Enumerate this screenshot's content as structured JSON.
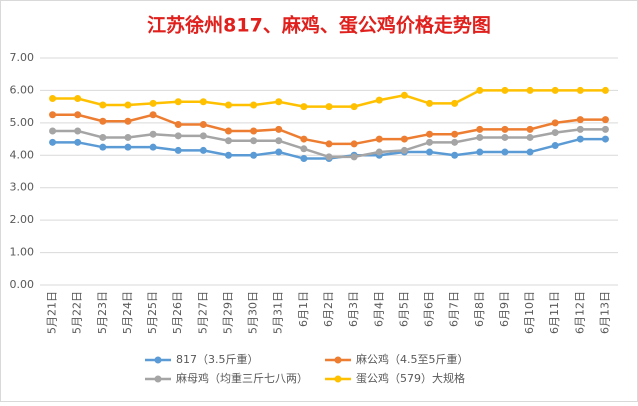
{
  "chart_data": {
    "type": "line",
    "title": "江苏徐州817、麻鸡、蛋公鸡价格走势图",
    "categories": [
      "5月21日",
      "5月22日",
      "5月23日",
      "5月24日",
      "5月25日",
      "5月26日",
      "5月27日",
      "5月29日",
      "5月30日",
      "5月31日",
      "6月1日",
      "6月2日",
      "6月3日",
      "6月4日",
      "6月5日",
      "6月6日",
      "6月7日",
      "6月8日",
      "6月9日",
      "6月10日",
      "6月11日",
      "6月12日",
      "6月13日"
    ],
    "series": [
      {
        "name": "817（3.5斤重）",
        "color": "#5b9bd5",
        "values": [
          4.4,
          4.4,
          4.25,
          4.25,
          4.25,
          4.15,
          4.15,
          4.0,
          4.0,
          4.1,
          3.9,
          3.9,
          4.0,
          4.0,
          4.1,
          4.1,
          4.0,
          4.1,
          4.1,
          4.1,
          4.3,
          4.5,
          4.5
        ]
      },
      {
        "name": "麻公鸡（4.5至5斤重）",
        "color": "#ed7d31",
        "values": [
          5.25,
          5.25,
          5.05,
          5.05,
          5.25,
          4.95,
          4.95,
          4.75,
          4.75,
          4.8,
          4.5,
          4.35,
          4.35,
          4.5,
          4.5,
          4.65,
          4.65,
          4.8,
          4.8,
          4.8,
          5.0,
          5.1,
          5.1
        ]
      },
      {
        "name": "麻母鸡（均重三斤七八两）",
        "color": "#a5a5a5",
        "values": [
          4.75,
          4.75,
          4.55,
          4.55,
          4.65,
          4.6,
          4.6,
          4.45,
          4.45,
          4.45,
          4.2,
          3.95,
          3.95,
          4.1,
          4.15,
          4.4,
          4.4,
          4.55,
          4.55,
          4.55,
          4.7,
          4.8,
          4.8
        ]
      },
      {
        "name": "蛋公鸡（579）大规格",
        "color": "#ffc000",
        "values": [
          5.75,
          5.75,
          5.55,
          5.55,
          5.6,
          5.65,
          5.65,
          5.55,
          5.55,
          5.65,
          5.5,
          5.5,
          5.5,
          5.7,
          5.85,
          5.6,
          5.6,
          6.0,
          6.0,
          6.0,
          6.0,
          6.0,
          6.0
        ]
      }
    ],
    "ylim": [
      0,
      7
    ],
    "yticks": [
      {
        "value": 0,
        "label": "0.00"
      },
      {
        "value": 1,
        "label": "1.00"
      },
      {
        "value": 2,
        "label": "2.00"
      },
      {
        "value": 3,
        "label": "3.00"
      },
      {
        "value": 4,
        "label": "4.00"
      },
      {
        "value": 5,
        "label": "5.00"
      },
      {
        "value": 6,
        "label": "6.00"
      },
      {
        "value": 7,
        "label": "7.00"
      }
    ],
    "grid": true,
    "legend": "bottom"
  }
}
